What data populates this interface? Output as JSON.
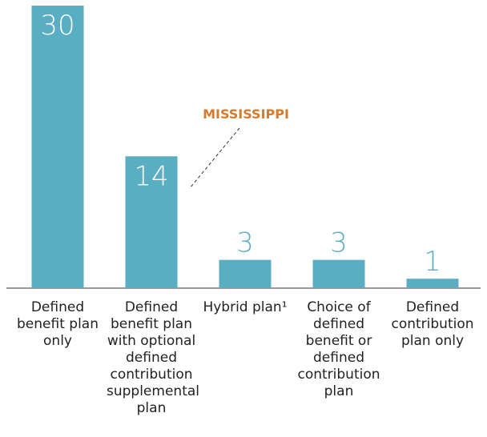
{
  "chart_data": {
    "type": "bar",
    "categories": [
      "Defined benefit plan only",
      "Defined benefit plan with optional defined contribution supplemental plan",
      "Hybrid plan¹",
      "Choice of defined benefit or defined contribution plan",
      "Defined contribution plan only"
    ],
    "values": [
      30,
      14,
      3,
      3,
      1
    ],
    "color": "#5aaec4",
    "annotation": {
      "text": "MISSISSIPPI",
      "category": 1,
      "color": "#d97a2b"
    }
  }
}
